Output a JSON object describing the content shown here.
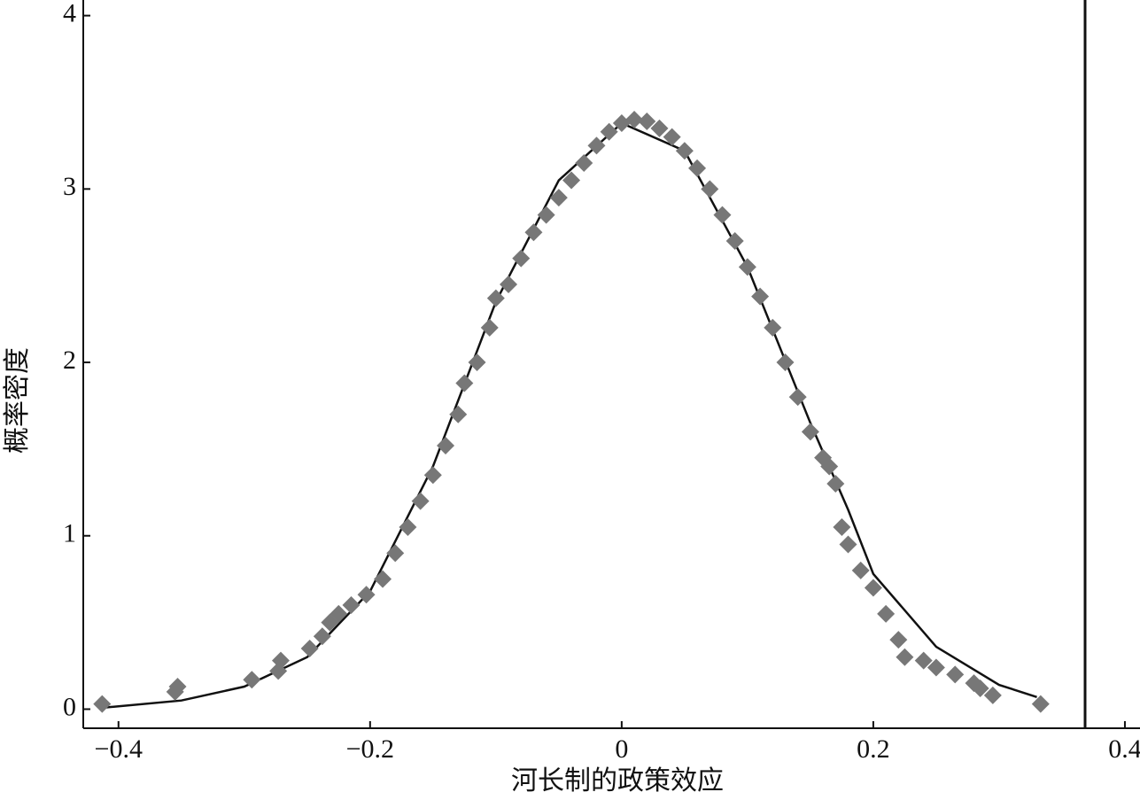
{
  "chart_data": {
    "type": "scatter",
    "xlabel": "河长制的政策效应",
    "ylabel": "概率密度",
    "xlim": [
      -0.428,
      0.412
    ],
    "ylim": [
      -0.11,
      4.09
    ],
    "xticks": [
      {
        "value": -0.4,
        "label": "−0.4"
      },
      {
        "value": -0.2,
        "label": "−0.2"
      },
      0,
      0.2,
      0.4
    ],
    "yticks": [
      0,
      1,
      2,
      3,
      4
    ],
    "series": [
      {
        "type": "line",
        "color": "#111111",
        "x": [
          -0.41,
          -0.35,
          -0.3,
          -0.25,
          -0.2,
          -0.15,
          -0.1,
          -0.05,
          0,
          0.05,
          0.1,
          0.15,
          0.18,
          0.2,
          0.25,
          0.3,
          0.33
        ],
        "values": [
          0.01,
          0.05,
          0.13,
          0.3,
          0.68,
          1.4,
          2.35,
          3.05,
          3.38,
          3.22,
          2.55,
          1.65,
          1.15,
          0.78,
          0.36,
          0.14,
          0.07
        ]
      },
      {
        "type": "scatter",
        "color": "#777777",
        "x": [
          -0.413,
          -0.355,
          -0.353,
          -0.294,
          -0.273,
          -0.271,
          -0.248,
          -0.238,
          -0.232,
          -0.225,
          -0.215,
          -0.203,
          -0.19,
          -0.18,
          -0.17,
          -0.16,
          -0.15,
          -0.14,
          -0.13,
          -0.125,
          -0.115,
          -0.105,
          -0.1,
          -0.09,
          -0.08,
          -0.07,
          -0.06,
          -0.05,
          -0.04,
          -0.03,
          -0.02,
          -0.01,
          0,
          0.01,
          0.02,
          0.03,
          0.04,
          0.05,
          0.06,
          0.07,
          0.08,
          0.09,
          0.1,
          0.11,
          0.12,
          0.13,
          0.14,
          0.15,
          0.16,
          0.165,
          0.17,
          0.175,
          0.18,
          0.19,
          0.2,
          0.21,
          0.22,
          0.225,
          0.24,
          0.25,
          0.265,
          0.28,
          0.285,
          0.295,
          0.333
        ],
        "values": [
          0.03,
          0.1,
          0.13,
          0.17,
          0.22,
          0.28,
          0.35,
          0.42,
          0.5,
          0.55,
          0.6,
          0.66,
          0.75,
          0.9,
          1.05,
          1.2,
          1.35,
          1.52,
          1.7,
          1.88,
          2.0,
          2.2,
          2.37,
          2.45,
          2.6,
          2.75,
          2.85,
          2.95,
          3.05,
          3.15,
          3.25,
          3.33,
          3.38,
          3.4,
          3.39,
          3.35,
          3.3,
          3.22,
          3.12,
          3.0,
          2.85,
          2.7,
          2.55,
          2.38,
          2.2,
          2.0,
          1.8,
          1.6,
          1.45,
          1.4,
          1.3,
          1.05,
          0.95,
          0.8,
          0.7,
          0.55,
          0.4,
          0.3,
          0.28,
          0.24,
          0.2,
          0.15,
          0.12,
          0.08,
          0.03
        ]
      }
    ]
  }
}
